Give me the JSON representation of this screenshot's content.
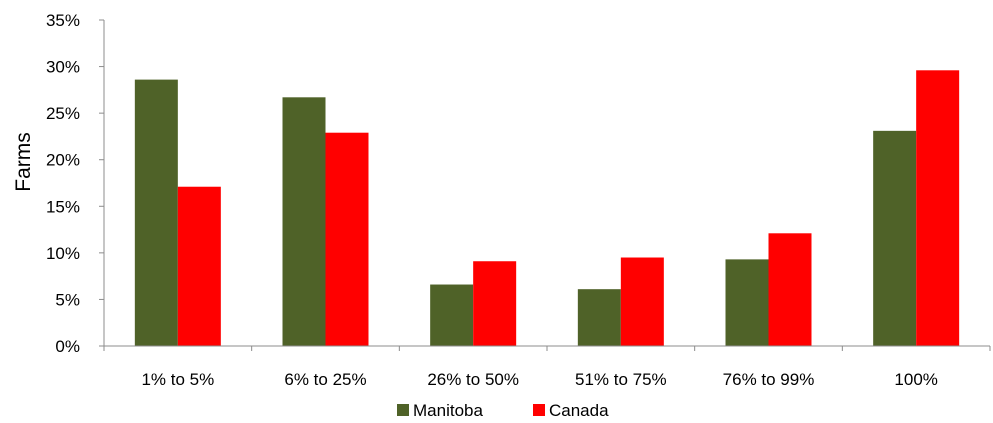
{
  "chart_data": {
    "type": "bar",
    "title": "",
    "xlabel": "",
    "ylabel": "Farms",
    "ylim": [
      0,
      35
    ],
    "yticks": [
      "0%",
      "5%",
      "10%",
      "15%",
      "20%",
      "25%",
      "30%",
      "35%"
    ],
    "ytick_values": [
      0,
      5,
      10,
      15,
      20,
      25,
      30,
      35
    ],
    "grid": false,
    "legend_position": "bottom",
    "categories": [
      "1% to 5%",
      "6% to 25%",
      "26% to 50%",
      "51% to 75%",
      "76% to 99%",
      "100%"
    ],
    "series": [
      {
        "name": "Manitoba",
        "color": "#4f6228",
        "values": [
          28.6,
          26.7,
          6.6,
          6.1,
          9.3,
          23.1
        ]
      },
      {
        "name": "Canada",
        "color": "#ff0000",
        "values": [
          17.1,
          22.9,
          9.1,
          9.5,
          12.1,
          29.6
        ]
      }
    ]
  }
}
